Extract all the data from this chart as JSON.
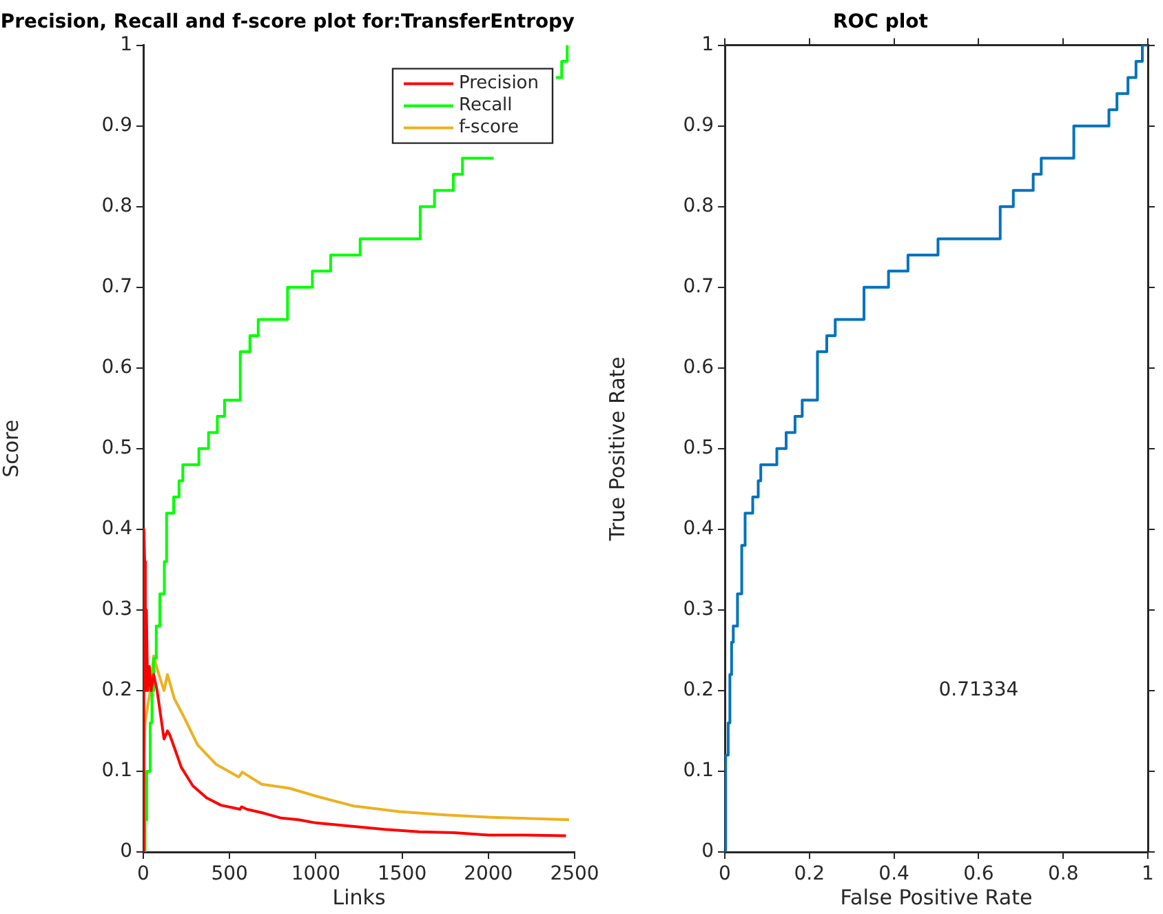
{
  "chart_data": [
    {
      "type": "line",
      "title": "Precision, Recall and f-score plot for:TransferEntropy",
      "xlabel": "Links",
      "ylabel": "Score",
      "xlim": [
        0,
        2500
      ],
      "xticks": [
        0,
        500,
        1000,
        1500,
        2000,
        2500
      ],
      "ylim": [
        0,
        1
      ],
      "yticks": [
        0,
        0.1,
        0.2,
        0.3,
        0.4,
        0.5,
        0.6,
        0.7,
        0.8,
        0.9,
        1
      ],
      "grid": false,
      "legend": "top right",
      "marker": "none",
      "line_style": "solid",
      "series": [
        {
          "name": "Precision",
          "color": "#ff0000",
          "x": [
            0,
            3,
            8,
            12,
            18,
            25,
            35,
            45,
            60,
            80,
            100,
            120,
            140,
            154,
            220,
            287,
            367,
            450,
            560,
            570,
            600,
            700,
            800,
            900,
            1000,
            1200,
            1400,
            1600,
            1800,
            2000,
            2200,
            2450
          ],
          "values": [
            0,
            0.4,
            0.36,
            0.2,
            0.3,
            0.2,
            0.23,
            0.2,
            0.22,
            0.2,
            0.17,
            0.14,
            0.15,
            0.145,
            0.105,
            0.082,
            0.067,
            0.058,
            0.053,
            0.056,
            0.053,
            0.048,
            0.042,
            0.04,
            0.036,
            0.032,
            0.028,
            0.025,
            0.024,
            0.021,
            0.021,
            0.02
          ]
        },
        {
          "name": "Recall",
          "type": "step",
          "color": "#00ff00",
          "x": [
            0,
            10,
            20,
            40,
            50,
            60,
            75,
            96,
            122,
            135,
            176,
            207,
            229,
            322,
            378,
            429,
            471,
            562,
            618,
            666,
            836,
            980,
            1086,
            1257,
            1605,
            1688,
            1797,
            1850,
            2031,
            2200,
            2391,
            2425,
            2457,
            2460
          ],
          "values": [
            0,
            0.04,
            0.1,
            0.16,
            0.2,
            0.24,
            0.28,
            0.32,
            0.36,
            0.42,
            0.44,
            0.46,
            0.48,
            0.5,
            0.52,
            0.54,
            0.56,
            0.62,
            0.64,
            0.66,
            0.7,
            0.72,
            0.74,
            0.76,
            0.8,
            0.82,
            0.84,
            0.86,
            0.86,
            null,
            0.96,
            0.98,
            1,
            1
          ]
        },
        {
          "name": "f-score",
          "color": "#edb120",
          "x": [
            0,
            5,
            10,
            25,
            40,
            60,
            90,
            120,
            140,
            180,
            234,
            314,
            420,
            553,
            574,
            686,
            846,
            1005,
            1218,
            1484,
            1750,
            2016,
            2468
          ],
          "values": [
            0,
            0.12,
            0.16,
            0.18,
            0.2,
            0.243,
            0.22,
            0.2,
            0.22,
            0.19,
            0.168,
            0.133,
            0.109,
            0.093,
            0.099,
            0.084,
            0.079,
            0.069,
            0.057,
            0.05,
            0.046,
            0.043,
            0.04
          ]
        }
      ]
    },
    {
      "type": "step",
      "title": "ROC plot",
      "xlabel": "False Positive Rate",
      "ylabel": "True Positive Rate",
      "xlim": [
        0,
        1
      ],
      "xticks": [
        0,
        0.2,
        0.4,
        0.6,
        0.8,
        1
      ],
      "ylim": [
        0,
        1
      ],
      "yticks": [
        0,
        0.1,
        0.2,
        0.3,
        0.4,
        0.5,
        0.6,
        0.7,
        0.8,
        0.9,
        1
      ],
      "grid": false,
      "marker": "none",
      "line_style": "solid",
      "annotations": [
        "0.71334"
      ],
      "series": [
        {
          "color": "#0072bd",
          "x": [
            0,
            0.002,
            0.008,
            0.012,
            0.016,
            0.02,
            0.03,
            0.04,
            0.048,
            0.066,
            0.079,
            0.085,
            0.123,
            0.145,
            0.166,
            0.183,
            0.219,
            0.241,
            0.261,
            0.329,
            0.387,
            0.433,
            0.504,
            0.651,
            0.682,
            0.729,
            0.748,
            0.825,
            0.908,
            0.927,
            0.953,
            0.972,
            0.987,
            1
          ],
          "values": [
            0,
            0.12,
            0.16,
            0.22,
            0.26,
            0.28,
            0.32,
            0.38,
            0.42,
            0.44,
            0.46,
            0.48,
            0.5,
            0.52,
            0.54,
            0.56,
            0.62,
            0.64,
            0.66,
            0.7,
            0.72,
            0.74,
            0.76,
            0.8,
            0.82,
            0.84,
            0.86,
            0.9,
            0.92,
            0.94,
            0.96,
            0.98,
            1,
            1
          ]
        }
      ]
    }
  ]
}
